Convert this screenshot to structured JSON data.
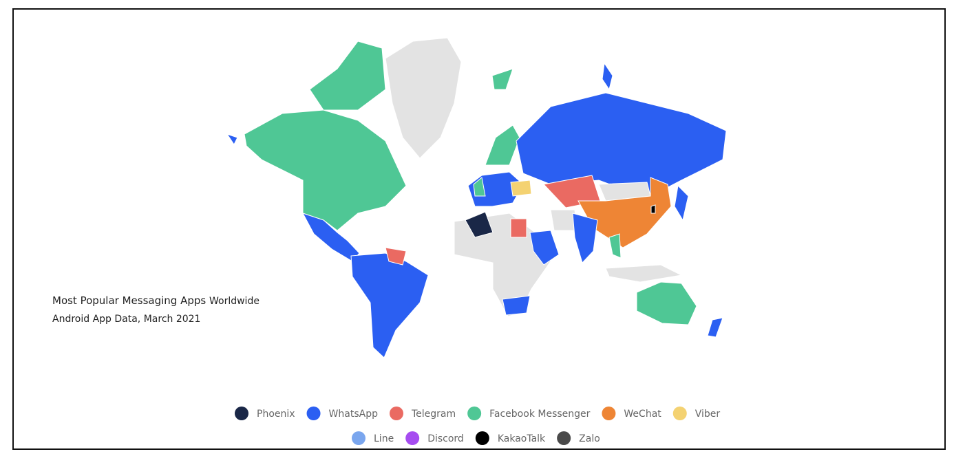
{
  "title": {
    "bold": "Most Popular Messaging Apps",
    "rest": "Worldwide"
  },
  "subtitle": "Android App Data, March 2021",
  "legend": [
    {
      "name": "Phoenix",
      "color": "#1a2747"
    },
    {
      "name": "WhatsApp",
      "color": "#2b5ff2"
    },
    {
      "name": "Telegram",
      "color": "#ea6a62"
    },
    {
      "name": "Facebook Messenger",
      "color": "#4fc795"
    },
    {
      "name": "WeChat",
      "color": "#ee8535"
    },
    {
      "name": "Viber",
      "color": "#f4d272"
    },
    {
      "name": "Line",
      "color": "#7aa6ee"
    },
    {
      "name": "Discord",
      "color": "#a64df0"
    },
    {
      "name": "KakaoTalk",
      "color": "#000000"
    },
    {
      "name": "Zalo",
      "color": "#4a4a4a"
    }
  ]
}
